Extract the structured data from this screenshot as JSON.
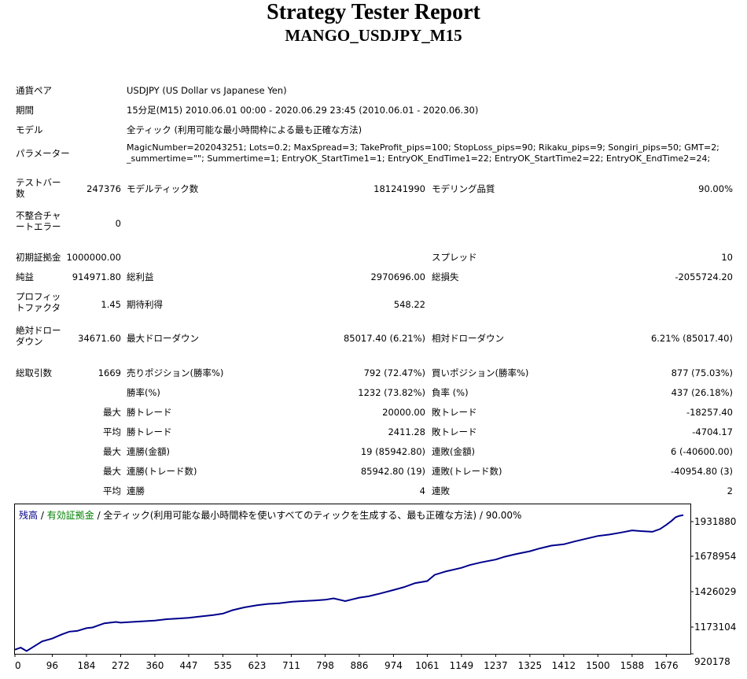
{
  "header": {
    "title": "Strategy Tester Report",
    "subtitle": "MANGO_USDJPY_M15"
  },
  "settings": {
    "pair_label": "通貨ペア",
    "pair_value": "USDJPY (US Dollar vs Japanese Yen)",
    "period_label": "期間",
    "period_value": "15分足(M15) 2010.06.01 00:00 - 2020.06.29 23:45 (2010.06.01 - 2020.06.30)",
    "model_label": "モデル",
    "model_value": "全ティック (利用可能な最小時間枠による最も正確な方法)",
    "params_label": "パラメーター",
    "params_line1": "MagicNumber=202043251; Lots=0.2; MaxSpread=3; TakeProfit_pips=100; StopLoss_pips=90; Rikaku_pips=9; Songiri_pips=50; GMT=2;",
    "params_line2": "_summertime=\"\"; Summertime=1; EntryOK_StartTime1=1; EntryOK_EndTime1=22; EntryOK_StartTime2=22; EntryOK_EndTime2=24;"
  },
  "stats": {
    "test_bars_label": "テストバー数",
    "test_bars_value": "247376",
    "model_ticks_label": "モデルティック数",
    "model_ticks_value": "181241990",
    "modeling_quality_label": "モデリング品質",
    "modeling_quality_value": "90.00%",
    "mismatch_label": "不整合チャートエラー",
    "mismatch_value": "0",
    "initial_deposit_label": "初期証拠金",
    "initial_deposit_value": "1000000.00",
    "spread_label": "スプレッド",
    "spread_value": "10",
    "net_profit_label": "純益",
    "net_profit_value": "914971.80",
    "gross_profit_label": "総利益",
    "gross_profit_value": "2970696.00",
    "gross_loss_label": "総損失",
    "gross_loss_value": "-2055724.20",
    "profit_factor_label": "プロフィットファクタ",
    "profit_factor_value": "1.45",
    "expected_payoff_label": "期待利得",
    "expected_payoff_value": "548.22",
    "abs_dd_label": "絶対ドローダウン",
    "abs_dd_value": "34671.60",
    "max_dd_label": "最大ドローダウン",
    "max_dd_value": "85017.40 (6.21%)",
    "rel_dd_label": "相対ドローダウン",
    "rel_dd_value": "6.21% (85017.40)",
    "total_trades_label": "総取引数",
    "total_trades_value": "1669",
    "short_label": "売りポジション(勝率%)",
    "short_value": "792 (72.47%)",
    "long_label": "買いポジション(勝率%)",
    "long_value": "877 (75.03%)",
    "win_rate_label": "勝率(%)",
    "win_rate_value": "1232 (73.82%)",
    "loss_rate_label": "負率 (%)",
    "loss_rate_value": "437 (26.18%)",
    "max1": "最大",
    "largest_win_label": "勝トレード",
    "largest_win_value": "20000.00",
    "largest_loss_label": "敗トレード",
    "largest_loss_value": "-18257.40",
    "avg": "平均",
    "avg_win_label": "勝トレード",
    "avg_win_value": "2411.28",
    "avg_loss_label": "敗トレード",
    "avg_loss_value": "-4704.17",
    "max2": "最大",
    "max_cons_wins_amt_label": "連勝(金額)",
    "max_cons_wins_amt_value": "19 (85942.80)",
    "max_cons_losses_amt_label": "連敗(金額)",
    "max_cons_losses_amt_value": "6 (-40600.00)",
    "max3": "最大",
    "max_cons_profit_label": "連勝(トレード数)",
    "max_cons_profit_value": "85942.80 (19)",
    "max_cons_loss_label": "連敗(トレード数)",
    "max_cons_loss_value": "-40954.80 (3)",
    "avg2": "平均",
    "avg_cons_wins_label": "連勝",
    "avg_cons_wins_value": "4",
    "avg_cons_losses_label": "連敗",
    "avg_cons_losses_value": "2"
  },
  "chart_data": {
    "type": "line",
    "legend_balance": "残高",
    "legend_sep": "/",
    "legend_equity": "有効証拠金",
    "legend_rest": "/ 全ティック(利用可能な最小時間枠を使いすべてのティックを生成する、最も正確な方法) / 90.00%",
    "colors": {
      "balance": "#00008b",
      "equity": "#008000",
      "frame": "#000000"
    },
    "x_ticks": [
      "0",
      "96",
      "184",
      "272",
      "360",
      "447",
      "535",
      "623",
      "711",
      "798",
      "886",
      "974",
      "1061",
      "1149",
      "1237",
      "1325",
      "1412",
      "1500",
      "1588",
      "1676"
    ],
    "y_ticks": [
      "1931880",
      "1678954",
      "1426029",
      "1173104",
      "920178"
    ],
    "xlim": [
      0,
      1738
    ],
    "ylim": [
      920178,
      1998000
    ],
    "series": [
      {
        "x": [
          0,
          15,
          30,
          50,
          70,
          96,
          120,
          140,
          160,
          184,
          200,
          230,
          260,
          272,
          300,
          330,
          360,
          390,
          420,
          447,
          480,
          510,
          535,
          560,
          590,
          623,
          650,
          680,
          711,
          740,
          770,
          798,
          820,
          850,
          886,
          910,
          940,
          974,
          1000,
          1030,
          1061,
          1080,
          1110,
          1149,
          1170,
          1200,
          1237,
          1260,
          1290,
          1325,
          1350,
          1380,
          1412,
          1440,
          1470,
          1500,
          1530,
          1560,
          1588,
          1610,
          1640,
          1660,
          1676,
          1690,
          1700,
          1710,
          1720
        ],
        "y": [
          950000,
          965000,
          940000,
          975000,
          1010000,
          1030000,
          1060000,
          1080000,
          1085000,
          1105000,
          1110000,
          1140000,
          1150000,
          1145000,
          1150000,
          1155000,
          1160000,
          1170000,
          1175000,
          1180000,
          1190000,
          1200000,
          1210000,
          1235000,
          1255000,
          1270000,
          1280000,
          1285000,
          1295000,
          1300000,
          1305000,
          1310000,
          1320000,
          1300000,
          1325000,
          1335000,
          1355000,
          1380000,
          1400000,
          1430000,
          1445000,
          1490000,
          1515000,
          1540000,
          1560000,
          1580000,
          1600000,
          1620000,
          1640000,
          1660000,
          1680000,
          1700000,
          1710000,
          1730000,
          1750000,
          1770000,
          1780000,
          1795000,
          1810000,
          1805000,
          1800000,
          1820000,
          1850000,
          1880000,
          1905000,
          1915000,
          1920000
        ]
      }
    ]
  }
}
